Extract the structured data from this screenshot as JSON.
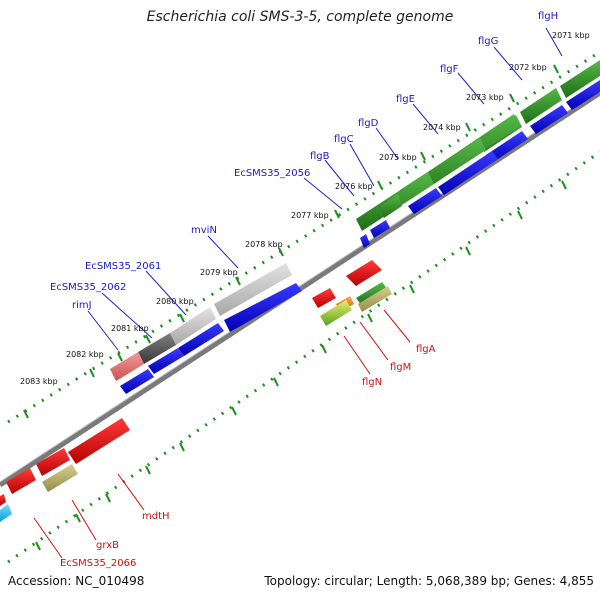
{
  "title": "Escherichia coli SMS-3-5, complete genome",
  "footer": {
    "accession": "Accession: NC_010498",
    "summary": "Topology: circular; Length: 5,068,389 bp; Genes: 4,855"
  },
  "colors": {
    "forward_cds": "#0a0ad8",
    "reverse_cds": "#e00000",
    "gene_forward": "#2e8b22",
    "gene_grey_light": "#c8c8c8",
    "gene_grey_dark": "#555555",
    "gene_pink": "#e87070",
    "gene_khaki": "#b8b070",
    "gene_orange": "#f08020",
    "gene_cyan": "#20c0f0",
    "backbone": "#808080",
    "kbp_ticks": "#1f8f1f"
  },
  "kbp_ticks": [
    "2071 kbp",
    "2072 kbp",
    "2073 kbp",
    "2074 kbp",
    "2075 kbp",
    "2076 kbp",
    "2077 kbp",
    "2078 kbp",
    "2079 kbp",
    "2080 kbp",
    "2081 kbp",
    "2082 kbp",
    "2083 kbp"
  ],
  "genes_forward": [
    {
      "name": "flgH",
      "icon": "leader-line"
    },
    {
      "name": "flgG",
      "icon": "leader-line"
    },
    {
      "name": "flgF",
      "icon": "leader-line"
    },
    {
      "name": "flgE",
      "icon": "leader-line"
    },
    {
      "name": "flgD",
      "icon": "leader-line"
    },
    {
      "name": "flgC",
      "icon": "leader-line"
    },
    {
      "name": "flgB",
      "icon": "leader-line"
    },
    {
      "name": "EcSMS35_2056",
      "icon": "leader-line"
    },
    {
      "name": "mviN",
      "icon": "leader-line"
    },
    {
      "name": "EcSMS35_2061",
      "icon": "leader-line"
    },
    {
      "name": "EcSMS35_2062",
      "icon": "leader-line"
    },
    {
      "name": "rimJ",
      "icon": "leader-line"
    }
  ],
  "genes_reverse": [
    {
      "name": "flgA",
      "icon": "leader-line"
    },
    {
      "name": "flgM",
      "icon": "leader-line"
    },
    {
      "name": "flgN",
      "icon": "leader-line"
    },
    {
      "name": "mdtH",
      "icon": "leader-line"
    },
    {
      "name": "grxB",
      "icon": "leader-line"
    },
    {
      "name": "EcSMS35_2066",
      "icon": "leader-line"
    }
  ]
}
